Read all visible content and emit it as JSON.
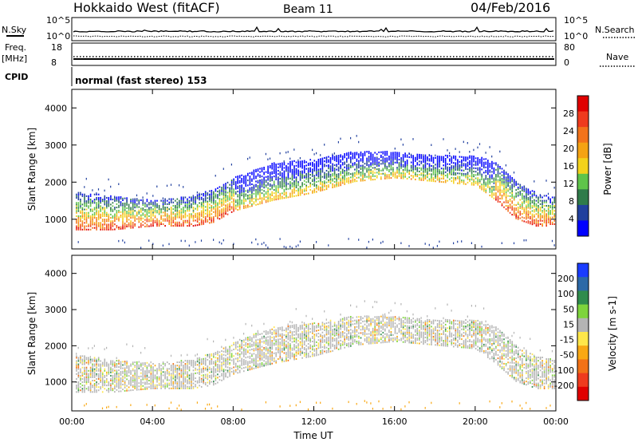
{
  "header": {
    "station": "Hokkaido West (fitACF)",
    "beam": "Beam 11",
    "date": "04/Feb/2016"
  },
  "status_labels": {
    "nsky": "N.Sky",
    "nsearch": "N.Search",
    "freq": "Freq.",
    "freq_unit": "[MHz]",
    "nave": "Nave",
    "cpid": "CPID",
    "cpid_value": "normal (fast stereo) 153",
    "noise_ticks": [
      "10^5",
      "10^0"
    ],
    "freq_ticks": [
      "18",
      "8"
    ],
    "nave_ticks": [
      "80",
      "0"
    ]
  },
  "colors": {
    "power_scale": [
      "#0000ff",
      "#21409e",
      "#2f7b4a",
      "#5fc44a",
      "#f3d21b",
      "#f5a313",
      "#f3731b",
      "#ef3b1e",
      "#e00000"
    ],
    "velocity_scale": [
      "#1a3cff",
      "#2c69a7",
      "#2f8c4d",
      "#7ed43c",
      "#b4b4b4",
      "#ffe74a",
      "#f9a813",
      "#f27217",
      "#ef3b1e",
      "#e00000"
    ]
  },
  "chart_data": [
    {
      "type": "heatmap",
      "panel": "power",
      "xlabel": "",
      "ylabel": "Slant Range [km]",
      "x_ticks": [
        "00:00",
        "04:00",
        "08:00",
        "12:00",
        "16:00",
        "20:00",
        "00:00"
      ],
      "y_ticks": [
        1000,
        2000,
        3000,
        4000
      ],
      "xlim": [
        0,
        24
      ],
      "ylim": [
        200,
        4500
      ],
      "colorbar": {
        "label": "Power [dB]",
        "ticks": [
          4,
          8,
          12,
          16,
          20,
          24,
          28
        ],
        "range": [
          0,
          32
        ]
      },
      "echo_bands": [
        {
          "t": 0.5,
          "min": 700,
          "max": 1700
        },
        {
          "t": 2,
          "min": 700,
          "max": 1600
        },
        {
          "t": 4,
          "min": 800,
          "max": 1500
        },
        {
          "t": 6,
          "min": 800,
          "max": 1600
        },
        {
          "t": 7,
          "min": 900,
          "max": 1800
        },
        {
          "t": 8,
          "min": 1200,
          "max": 2100
        },
        {
          "t": 10,
          "min": 1500,
          "max": 2500
        },
        {
          "t": 12,
          "min": 1700,
          "max": 2600
        },
        {
          "t": 14,
          "min": 2000,
          "max": 2800
        },
        {
          "t": 16,
          "min": 2100,
          "max": 2800
        },
        {
          "t": 18,
          "min": 2000,
          "max": 2700
        },
        {
          "t": 20,
          "min": 1900,
          "max": 2700
        },
        {
          "t": 21,
          "min": 1500,
          "max": 2500
        },
        {
          "t": 22,
          "min": 1000,
          "max": 2000
        },
        {
          "t": 23,
          "min": 800,
          "max": 1700
        },
        {
          "t": 23.8,
          "min": 800,
          "max": 1600
        }
      ]
    },
    {
      "type": "heatmap",
      "panel": "velocity",
      "xlabel": "Time UT",
      "ylabel": "Slant Range [km]",
      "x_ticks": [
        "00:00",
        "04:00",
        "08:00",
        "12:00",
        "16:00",
        "20:00",
        "00:00"
      ],
      "y_ticks": [
        1000,
        2000,
        3000,
        4000
      ],
      "xlim": [
        0,
        24
      ],
      "ylim": [
        200,
        4500
      ],
      "colorbar": {
        "label": "Velocity [m s-1]",
        "ticks": [
          200,
          100,
          50,
          15,
          -15,
          -50,
          -100,
          -200
        ],
        "range": [
          -250,
          250
        ]
      },
      "echo_bands": [
        {
          "t": 0.5,
          "min": 700,
          "max": 1700
        },
        {
          "t": 2,
          "min": 700,
          "max": 1600
        },
        {
          "t": 4,
          "min": 800,
          "max": 1500
        },
        {
          "t": 6,
          "min": 800,
          "max": 1600
        },
        {
          "t": 7,
          "min": 900,
          "max": 1800
        },
        {
          "t": 8,
          "min": 1200,
          "max": 2100
        },
        {
          "t": 10,
          "min": 1500,
          "max": 2500
        },
        {
          "t": 12,
          "min": 1700,
          "max": 2600
        },
        {
          "t": 14,
          "min": 2000,
          "max": 2800
        },
        {
          "t": 16,
          "min": 2100,
          "max": 2800
        },
        {
          "t": 18,
          "min": 2000,
          "max": 2700
        },
        {
          "t": 20,
          "min": 1900,
          "max": 2700
        },
        {
          "t": 21,
          "min": 1500,
          "max": 2500
        },
        {
          "t": 22,
          "min": 1000,
          "max": 2000
        },
        {
          "t": 23,
          "min": 800,
          "max": 1700
        },
        {
          "t": 23.8,
          "min": 800,
          "max": 1600
        }
      ]
    }
  ]
}
